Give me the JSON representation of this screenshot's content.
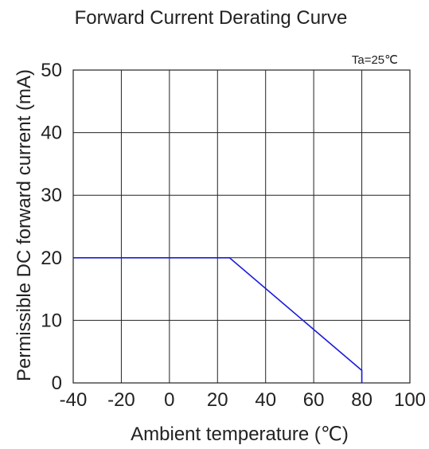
{
  "chart_data": {
    "type": "line",
    "title": "Forward Current Derating Curve",
    "xlabel": "Ambient temperature (℃)",
    "ylabel": "Permissible DC forward current (mA)",
    "annotation": "Ta=25℃",
    "xlim": [
      -40,
      100
    ],
    "ylim": [
      0,
      50
    ],
    "x_ticks": [
      -40,
      -20,
      0,
      20,
      40,
      60,
      80,
      100
    ],
    "y_ticks": [
      0,
      10,
      20,
      30,
      40,
      50
    ],
    "x_tick_labels": [
      "-40",
      "-20",
      "0",
      "20",
      "40",
      "60",
      "80",
      "100"
    ],
    "y_tick_labels": [
      "0",
      "10",
      "20",
      "30",
      "40",
      "50"
    ],
    "grid": true,
    "series": [
      {
        "color": "#1a1adb",
        "x": [
          -40,
          25,
          80,
          80
        ],
        "y": [
          20,
          20,
          2,
          0
        ]
      }
    ]
  }
}
